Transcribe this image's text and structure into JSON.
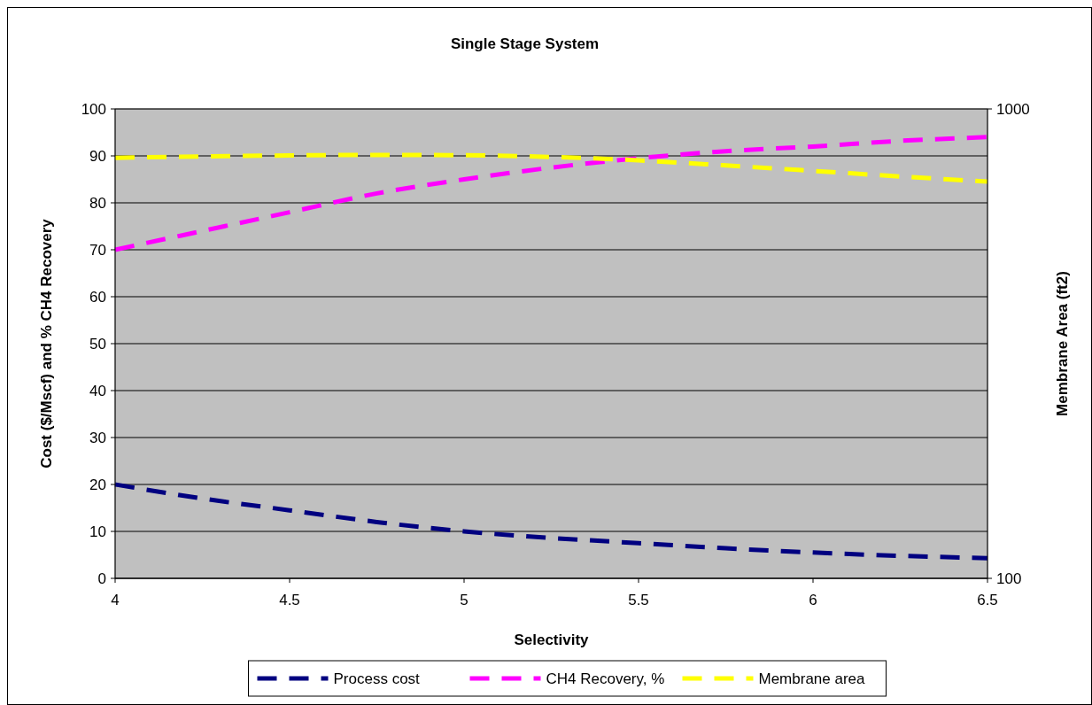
{
  "chart_data": {
    "type": "line",
    "title": "Single Stage System",
    "xlabel": "Selectivity",
    "ylabel": "Cost ($/Mscf) and % CH4 Recovery",
    "y2label": "Membrane Area (ft2)",
    "x": [
      4,
      4.25,
      4.5,
      4.75,
      5,
      5.25,
      5.5,
      5.75,
      6,
      6.25,
      6.5
    ],
    "series": [
      {
        "name": "Process cost",
        "color": "#000080",
        "values": [
          20,
          17,
          14.5,
          12,
          10,
          8.6,
          7.5,
          6.4,
          5.5,
          4.8,
          4.3
        ]
      },
      {
        "name": "CH4 Recovery, %",
        "color": "#ff00ff",
        "values": [
          70,
          74,
          78,
          82,
          85,
          87.5,
          89.5,
          91,
          92,
          93.2,
          94
        ]
      },
      {
        "name": "Membrane area",
        "color": "#ffff00",
        "axis": "y2",
        "values": [
          787,
          792,
          796,
          798,
          797,
          790,
          777,
          758,
          738,
          718,
          700
        ]
      }
    ],
    "xlim": [
      4,
      6.5
    ],
    "xticks": [
      4,
      4.5,
      5,
      5.5,
      6,
      6.5
    ],
    "ylim": [
      0,
      100
    ],
    "yticks": [
      0,
      10,
      20,
      30,
      40,
      50,
      60,
      70,
      80,
      90,
      100
    ],
    "y2lim": [
      100,
      1000
    ],
    "y2ticks": [
      100,
      1000
    ],
    "log": "y2",
    "grid": "y",
    "legend": "bottom",
    "line_style": "dashed",
    "marker": "none"
  }
}
